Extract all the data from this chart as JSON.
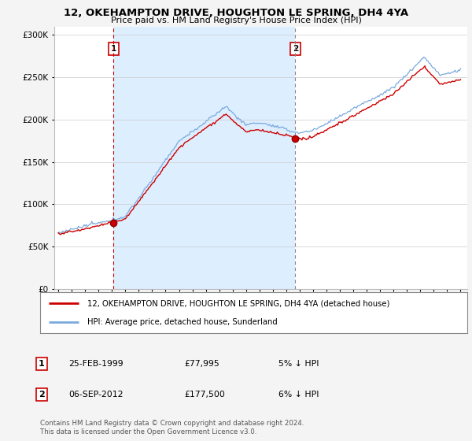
{
  "title": "12, OKEHAMPTON DRIVE, HOUGHTON LE SPRING, DH4 4YA",
  "subtitle": "Price paid vs. HM Land Registry's House Price Index (HPI)",
  "legend_line1": "12, OKEHAMPTON DRIVE, HOUGHTON LE SPRING, DH4 4YA (detached house)",
  "legend_line2": "HPI: Average price, detached house, Sunderland",
  "annotation1_label": "1",
  "annotation1_date": "25-FEB-1999",
  "annotation1_price": "£77,995",
  "annotation1_hpi": "5% ↓ HPI",
  "annotation2_label": "2",
  "annotation2_date": "06-SEP-2012",
  "annotation2_price": "£177,500",
  "annotation2_hpi": "6% ↓ HPI",
  "footer": "Contains HM Land Registry data © Crown copyright and database right 2024.\nThis data is licensed under the Open Government Licence v3.0.",
  "price_color": "#cc0000",
  "hpi_color": "#7aaadd",
  "shade_color": "#ddeeff",
  "marker1_x": 1999.12,
  "marker1_y": 77995,
  "marker2_x": 2012.67,
  "marker2_y": 177500,
  "ylim": [
    0,
    310000
  ],
  "xlim": [
    1994.7,
    2025.5
  ],
  "yticks": [
    0,
    50000,
    100000,
    150000,
    200000,
    250000,
    300000
  ],
  "background_color": "#f4f4f4",
  "plot_bg_color": "#ffffff"
}
